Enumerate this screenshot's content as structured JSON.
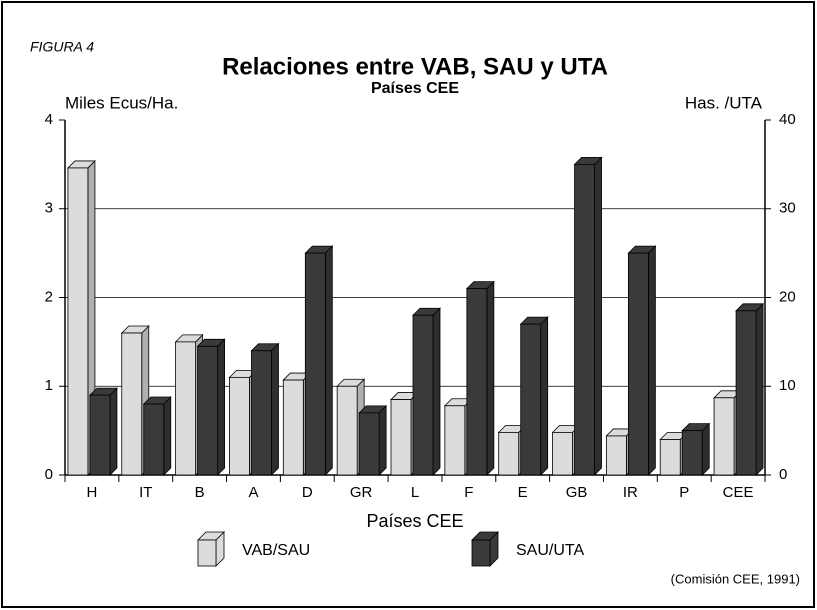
{
  "chart_data": {
    "type": "bar",
    "label": "FIGURA 4",
    "title": "Relaciones entre VAB, SAU y UTA",
    "subtitle": "Países CEE",
    "y_label": "Miles Ecus/Ha.",
    "y2_label": "Has. /UTA",
    "x_label": "Países CEE",
    "source": "(Comisión CEE, 1991)",
    "categories": [
      "H",
      "IT",
      "B",
      "A",
      "D",
      "GR",
      "L",
      "F",
      "E",
      "GB",
      "IR",
      "P",
      "CEE"
    ],
    "series": [
      {
        "name": "VAB/SAU",
        "color": "#dcdcdc",
        "values": [
          3.46,
          1.6,
          1.5,
          1.1,
          1.07,
          1.0,
          0.85,
          0.78,
          0.48,
          0.48,
          0.44,
          0.4,
          0.87
        ]
      },
      {
        "name": "SAU/UTA",
        "color": "#3a3a3a",
        "axis": "y2",
        "values": [
          9,
          8,
          14.5,
          14,
          25,
          7,
          18,
          21,
          17,
          35,
          25,
          5,
          18.5
        ]
      }
    ],
    "ylim": [
      0,
      4
    ],
    "yticks": [
      0,
      1,
      2,
      3,
      4
    ],
    "y2lim": [
      0,
      40
    ],
    "y2ticks": [
      0,
      10,
      20,
      30,
      40
    ],
    "grid": true
  }
}
